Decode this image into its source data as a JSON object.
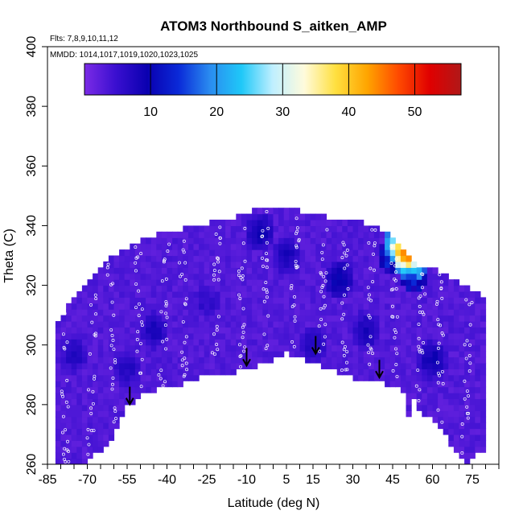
{
  "chart_data": {
    "type": "heatmap",
    "title": "ATOM3 Northbound S_aitken_AMP",
    "annotations": [
      "Flts: 7,8,9,10,11,12",
      "MMDD: 1014,1017,1019,1020,1023,1025"
    ],
    "xlabel": "Latitude (deg N)",
    "ylabel": "Theta (C)",
    "xlim": [
      -85,
      85
    ],
    "ylim": [
      260,
      400
    ],
    "x_ticks": [
      -85,
      -70,
      -55,
      -40,
      -25,
      -10,
      5,
      15,
      30,
      45,
      60,
      75
    ],
    "y_ticks": [
      260,
      280,
      300,
      320,
      340,
      360,
      380,
      400
    ],
    "colorbar": {
      "range": [
        0,
        57
      ],
      "ticks": [
        10,
        20,
        30,
        40,
        50
      ],
      "colors": [
        "#7b2be6",
        "#3a0fd0",
        "#0a00b0",
        "#0a2ad8",
        "#2a8cf0",
        "#1fc8f8",
        "#bfefff",
        "#fffbdc",
        "#ffe040",
        "#ffa500",
        "#ff4a00",
        "#e00000",
        "#b01818"
      ]
    },
    "background_value_typical": 3,
    "upper_envelope": [
      [
        -79,
        310
      ],
      [
        -71,
        320
      ],
      [
        -62,
        328
      ],
      [
        -55,
        332
      ],
      [
        -45,
        336
      ],
      [
        -35,
        338
      ],
      [
        -25,
        340
      ],
      [
        -15,
        342
      ],
      [
        -5,
        345
      ],
      [
        5,
        345
      ],
      [
        15,
        343
      ],
      [
        25,
        341
      ],
      [
        35,
        340
      ],
      [
        45,
        336
      ],
      [
        55,
        326
      ],
      [
        65,
        323
      ],
      [
        75,
        318
      ],
      [
        80,
        315
      ]
    ],
    "lower_envelope": [
      [
        -72,
        260
      ],
      [
        -62,
        268
      ],
      [
        -55,
        280
      ],
      [
        -48,
        285
      ],
      [
        -38,
        287
      ],
      [
        -28,
        290
      ],
      [
        -18,
        291
      ],
      [
        -10,
        293
      ],
      [
        0,
        296
      ],
      [
        5,
        298
      ],
      [
        12,
        296
      ],
      [
        20,
        293
      ],
      [
        30,
        290
      ],
      [
        38,
        289
      ],
      [
        46,
        287
      ],
      [
        50,
        285
      ],
      [
        51,
        277
      ],
      [
        53,
        282
      ],
      [
        56,
        278
      ],
      [
        60,
        277
      ],
      [
        64,
        272
      ],
      [
        68,
        266
      ],
      [
        73,
        261
      ],
      [
        77,
        264
      ],
      [
        80,
        264
      ]
    ],
    "descent_markers": [
      {
        "x": -54,
        "y": 286
      },
      {
        "x": -10,
        "y": 299
      },
      {
        "x": 16,
        "y": 303
      },
      {
        "x": 40,
        "y": 295
      }
    ],
    "features": [
      {
        "type": "high_patch",
        "x": 48,
        "y": 334,
        "value": 36
      },
      {
        "type": "high_patch",
        "x": 50,
        "y": 331,
        "value": 45
      },
      {
        "type": "high_patch",
        "x": 52,
        "y": 328,
        "value": 24
      },
      {
        "type": "high_patch",
        "x": 53,
        "y": 325,
        "value": 18
      },
      {
        "type": "high_patch",
        "x": 54,
        "y": 331,
        "value": 30
      },
      {
        "type": "high_patch",
        "x": 47,
        "y": 337,
        "value": 20
      },
      {
        "type": "high_patch",
        "x": 45,
        "y": 330,
        "value": 14
      },
      {
        "type": "blue_patch",
        "x": -5,
        "y": 338,
        "value": 9
      },
      {
        "type": "blue_patch",
        "x": 5,
        "y": 330,
        "value": 8
      },
      {
        "type": "blue_patch",
        "x": 25,
        "y": 322,
        "value": 10
      },
      {
        "type": "blue_patch",
        "x": -45,
        "y": 305,
        "value": 8
      },
      {
        "type": "blue_patch",
        "x": -55,
        "y": 292,
        "value": 7
      },
      {
        "type": "blue_patch",
        "x": 15,
        "y": 300,
        "value": 7
      },
      {
        "type": "blue_patch",
        "x": 60,
        "y": 295,
        "value": 9
      },
      {
        "type": "blue_patch",
        "x": -75,
        "y": 297,
        "value": 7
      },
      {
        "type": "blue_patch",
        "x": 35,
        "y": 305,
        "value": 8
      },
      {
        "type": "blue_patch",
        "x": -25,
        "y": 315,
        "value": 6
      }
    ]
  }
}
